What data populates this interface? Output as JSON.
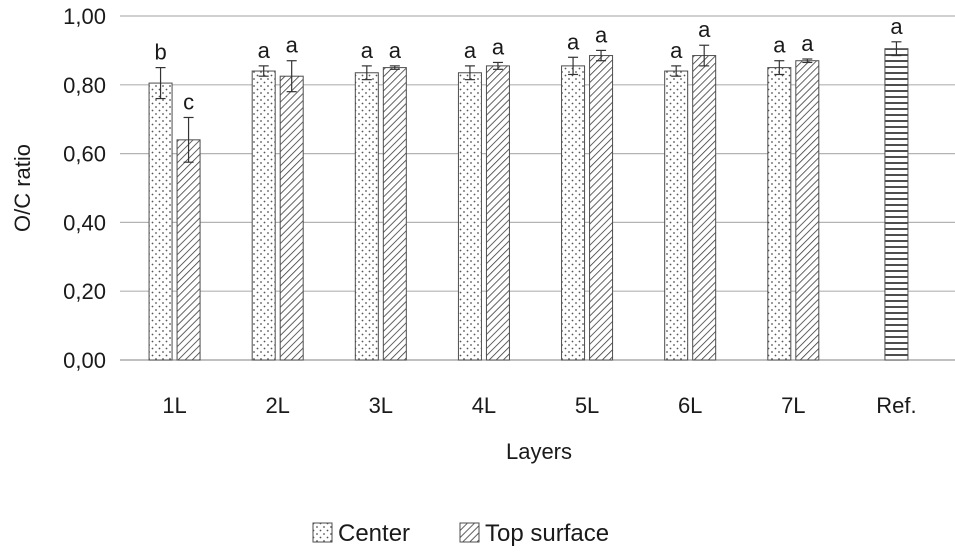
{
  "chart_data": {
    "type": "bar",
    "xlabel": "Layers",
    "ylabel": "O/C ratio",
    "ylim": [
      0,
      1.0
    ],
    "yticks": [
      "0,00",
      "0,20",
      "0,40",
      "0,60",
      "0,80",
      "1,00"
    ],
    "ytick_values": [
      0,
      0.2,
      0.4,
      0.6,
      0.8,
      1.0
    ],
    "grid": true,
    "categories": [
      "1L",
      "2L",
      "3L",
      "4L",
      "5L",
      "6L",
      "7L",
      "Ref."
    ],
    "series": [
      {
        "name": "Center",
        "pattern": "dots",
        "values": [
          0.805,
          0.84,
          0.835,
          0.835,
          0.855,
          0.84,
          0.85,
          null
        ],
        "errors": [
          0.045,
          0.015,
          0.02,
          0.02,
          0.025,
          0.015,
          0.02,
          null
        ],
        "labels": [
          "b",
          "a",
          "a",
          "a",
          "a",
          "a",
          "a",
          null
        ]
      },
      {
        "name": "Top surface",
        "pattern": "diagonal",
        "values": [
          0.64,
          0.825,
          0.85,
          0.855,
          0.885,
          0.885,
          0.87,
          null
        ],
        "errors": [
          0.065,
          0.045,
          0.005,
          0.01,
          0.015,
          0.03,
          0.005,
          null
        ],
        "labels": [
          "c",
          "a",
          "a",
          "a",
          "a",
          "a",
          "a",
          null
        ]
      },
      {
        "name": "Ref.",
        "pattern": "horizontal",
        "values": [
          null,
          null,
          null,
          null,
          null,
          null,
          null,
          0.905
        ],
        "errors": [
          null,
          null,
          null,
          null,
          null,
          null,
          null,
          0.02
        ],
        "labels": [
          null,
          null,
          null,
          null,
          null,
          null,
          null,
          "a"
        ]
      }
    ],
    "legend": {
      "position": "bottom",
      "entries": [
        "Center",
        "Top surface"
      ]
    },
    "colors": {
      "bar_stroke": "#4d4d4d",
      "grid": "#b3b3b3",
      "text": "#1a1a1a"
    }
  }
}
